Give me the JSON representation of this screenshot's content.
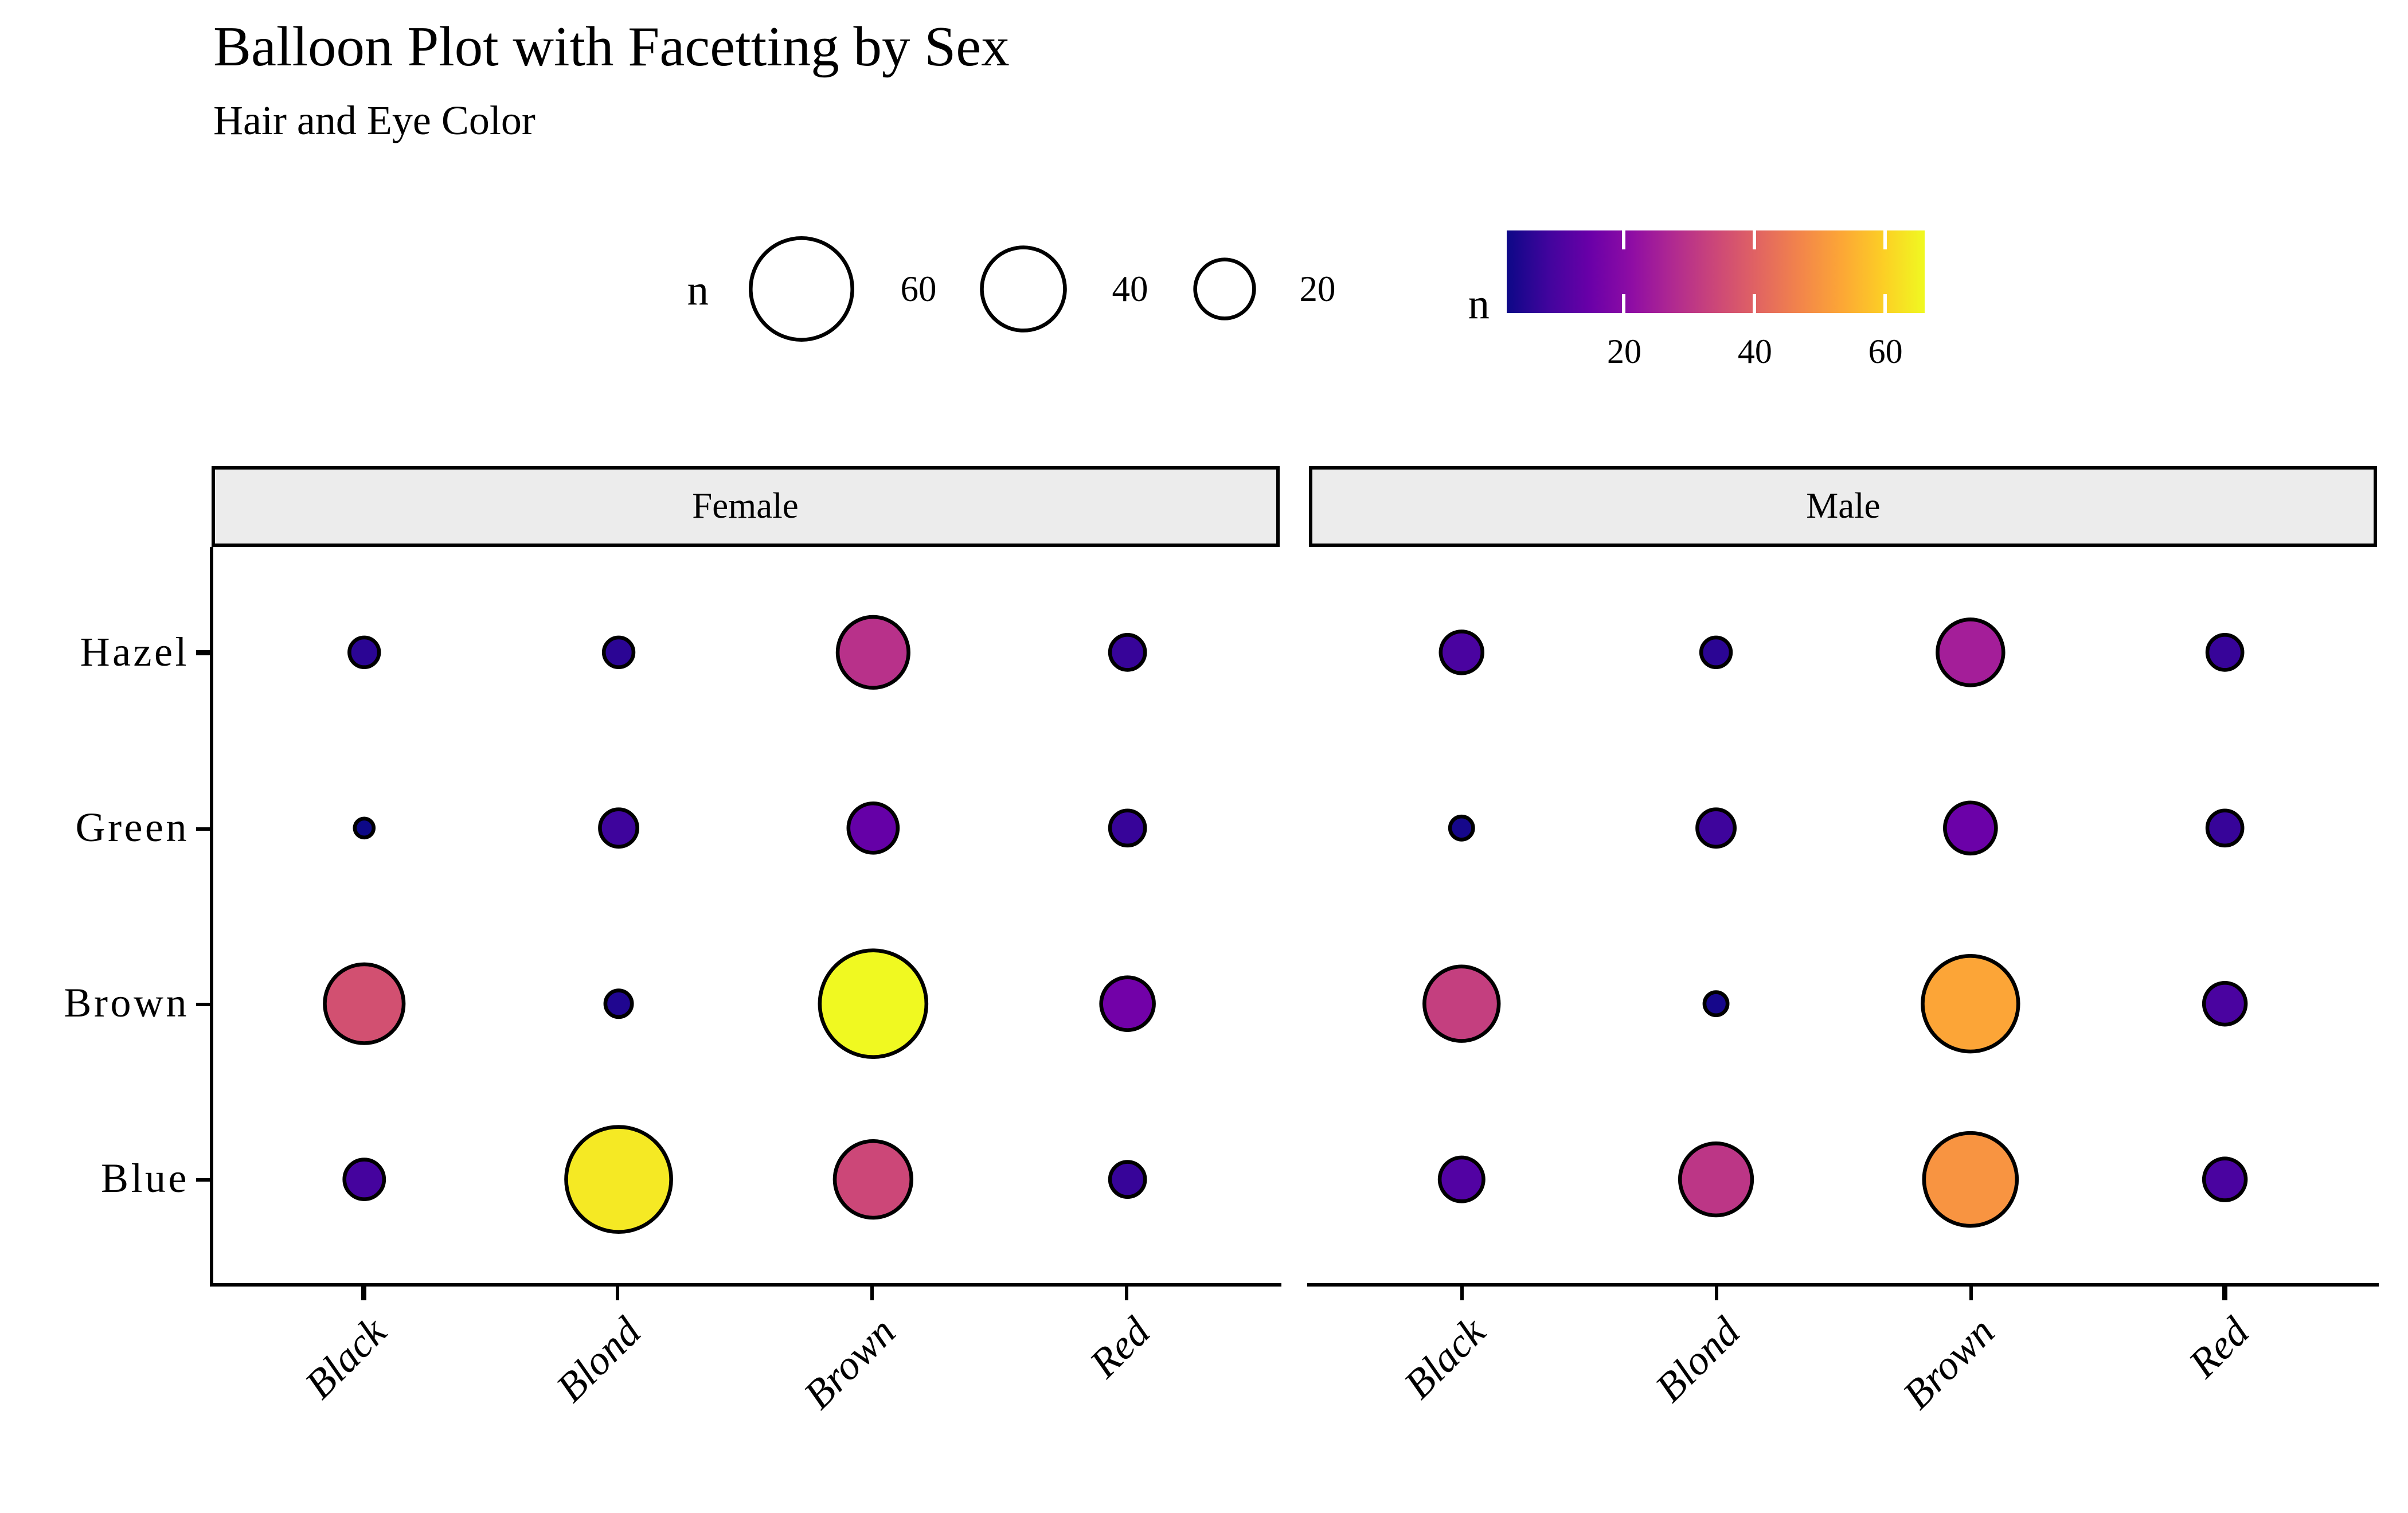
{
  "title": "Balloon Plot with Facetting by Sex",
  "subtitle": "Hair and Eye Color",
  "colors": {
    "background": "#ffffff",
    "strip_fill": "#ECECEC",
    "balloon_stroke": "#000000",
    "axis": "#000000"
  },
  "chart_data": {
    "type": "balloon",
    "title": "Balloon Plot with Facetting by Sex",
    "subtitle": "Hair and Eye Color",
    "x_categories": [
      "Black",
      "Blond",
      "Brown",
      "Red"
    ],
    "y_categories": [
      "Hazel",
      "Green",
      "Brown",
      "Blue"
    ],
    "facets": [
      {
        "label": "Female",
        "values": [
          [
            5,
            5,
            29,
            7
          ],
          [
            2,
            8,
            14,
            7
          ],
          [
            36,
            4,
            66,
            16
          ],
          [
            9,
            64,
            34,
            7
          ]
        ],
        "fills": [
          [
            "#2b0594",
            "#2b0594",
            "#b8318a",
            "#370499"
          ],
          [
            "#0d0887",
            "#3e049c",
            "#6500a7",
            "#370499"
          ],
          [
            "#d25071",
            "#200690",
            "#f0f921",
            "#7201a8"
          ],
          [
            "#45039e",
            "#f5e924",
            "#cc4778",
            "#370499"
          ]
        ]
      },
      {
        "label": "Male",
        "values": [
          [
            10,
            5,
            25,
            7
          ],
          [
            3,
            8,
            15,
            7
          ],
          [
            32,
            3,
            53,
            10
          ],
          [
            11,
            30,
            50,
            10
          ]
        ],
        "fills": [
          [
            "#4a03a0",
            "#2b0594",
            "#a41e99",
            "#370499"
          ],
          [
            "#16078b",
            "#3e049c",
            "#6b01a8",
            "#370499"
          ],
          [
            "#c43f7f",
            "#16078b",
            "#fca537",
            "#4a03a0"
          ],
          [
            "#5202a3",
            "#bc3686",
            "#f89441",
            "#4a03a0"
          ]
        ]
      }
    ],
    "size_scale": {
      "label": "n",
      "domain": [
        2,
        66
      ],
      "radius_px": [
        5.5,
        31
      ],
      "legend_values": [
        60,
        40,
        20
      ]
    },
    "fill_scale": {
      "label": "n",
      "palette": "plasma",
      "domain": [
        2,
        66
      ],
      "ticks": [
        20,
        40,
        60
      ],
      "stops": [
        "#0d0887",
        "#41049d",
        "#6a00a8",
        "#8f0da4",
        "#b12a90",
        "#cc4778",
        "#e16462",
        "#f2844b",
        "#fca636",
        "#fcce25",
        "#f0f921"
      ]
    },
    "layout_hints": {
      "grid": false,
      "x_label_rotation": -45,
      "legend_position": "top"
    }
  }
}
